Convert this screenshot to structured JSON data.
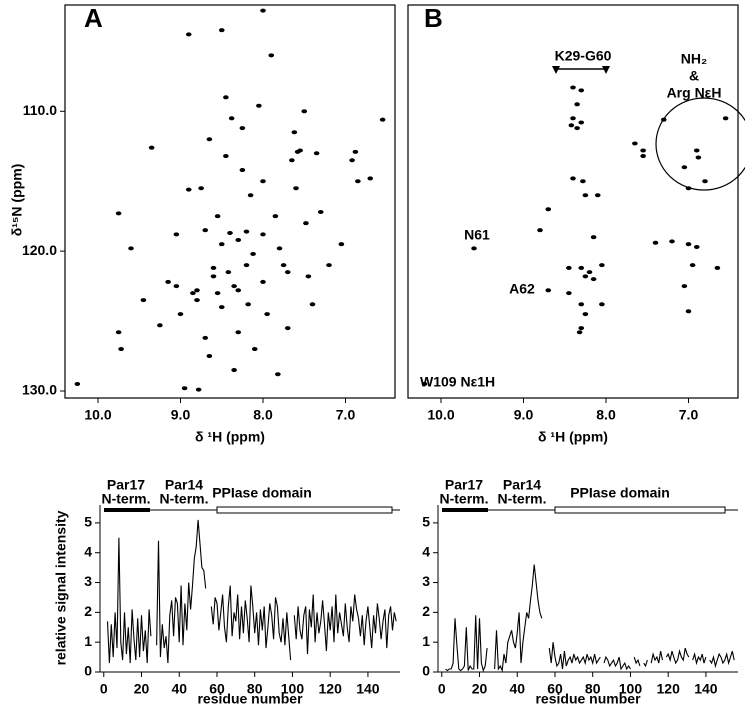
{
  "chart_data": [
    {
      "type": "scatter",
      "panel": "A",
      "color": "#000000",
      "x": [
        10.25,
        9.75,
        9.72,
        9.75,
        9.6,
        9.45,
        9.35,
        9.25,
        9.15,
        9.05,
        9.0,
        8.95,
        8.9,
        8.8,
        8.8,
        8.78,
        8.7,
        8.7,
        8.75,
        8.65,
        8.6,
        8.6,
        8.55,
        8.55,
        8.5,
        8.5,
        8.45,
        8.45,
        8.42,
        8.4,
        8.38,
        8.35,
        8.3,
        8.3,
        8.3,
        8.25,
        8.25,
        8.2,
        8.2,
        8.18,
        8.15,
        8.12,
        8.1,
        8.05,
        8.0,
        8.0,
        8.0,
        7.95,
        7.9,
        7.85,
        7.82,
        7.8,
        7.75,
        7.7,
        7.65,
        7.6,
        7.55,
        7.5,
        7.48,
        7.45,
        7.4,
        7.35,
        7.3,
        7.2,
        7.05,
        6.92,
        6.88,
        6.85,
        6.7,
        6.55,
        7.58,
        7.62,
        8.85,
        9.05,
        8.9,
        8.65,
        8.35,
        8.0,
        7.7,
        8.5
      ],
      "values": [
        129.5,
        125.8,
        127.0,
        117.3,
        119.8,
        123.5,
        112.6,
        125.3,
        122.2,
        122.5,
        124.5,
        129.8,
        104.5,
        122.8,
        123.5,
        129.9,
        126.2,
        118.5,
        115.5,
        112.0,
        121.2,
        121.8,
        117.5,
        123.0,
        124.0,
        104.2,
        109.0,
        113.2,
        121.5,
        118.7,
        110.5,
        122.5,
        119.2,
        122.8,
        125.8,
        111.2,
        114.2,
        118.6,
        121.0,
        123.8,
        116.0,
        120.2,
        127.0,
        109.6,
        102.8,
        115.0,
        122.2,
        124.5,
        106.0,
        117.5,
        128.8,
        119.8,
        121.0,
        125.5,
        113.5,
        115.5,
        112.8,
        110.0,
        118.0,
        121.8,
        123.8,
        113.0,
        117.2,
        121.0,
        119.5,
        113.5,
        112.9,
        115.0,
        114.8,
        110.6,
        112.9,
        111.5,
        123.0,
        118.8,
        115.6,
        127.5,
        128.5,
        118.8,
        121.5,
        119.5
      ],
      "xlim": [
        10.4,
        6.4
      ],
      "ylim": [
        130.5,
        102.4
      ],
      "xticks": [
        {
          "value": 10,
          "label": "10.0"
        },
        {
          "value": 9,
          "label": "9.0"
        },
        {
          "value": 8,
          "label": "8.0"
        },
        {
          "value": 7,
          "label": "7.0"
        }
      ],
      "yticks": [
        {
          "value": 110,
          "label": "110.0"
        },
        {
          "value": 120,
          "label": "120.0"
        },
        {
          "value": 130,
          "label": "130.0"
        }
      ],
      "xlabel": "δ ¹H (ppm)",
      "ylabel": "δ¹⁵N (ppm)"
    },
    {
      "type": "scatter",
      "panel": "B",
      "color": "#000000",
      "x": [
        8.4,
        8.3,
        8.35,
        8.4,
        8.42,
        8.35,
        8.3,
        8.4,
        8.28,
        8.25,
        8.1,
        8.45,
        8.3,
        8.25,
        8.2,
        8.15,
        8.05,
        8.45,
        8.3,
        8.25,
        8.05,
        8.3,
        8.32,
        8.15,
        8.8,
        8.7,
        9.6,
        8.7,
        10.2,
        7.65,
        7.55,
        7.55,
        6.9,
        6.88,
        7.3,
        6.55,
        7.0,
        6.8,
        7.4,
        7.2,
        7.0,
        6.9,
        6.95,
        7.05,
        6.65,
        7.0,
        7.05
      ],
      "values": [
        108.3,
        108.5,
        109.5,
        110.5,
        111.0,
        111.2,
        110.8,
        114.8,
        115.0,
        116.0,
        116.0,
        121.2,
        121.2,
        121.8,
        121.5,
        122.0,
        121.0,
        123.0,
        123.8,
        124.5,
        123.8,
        125.5,
        125.8,
        119.0,
        118.5,
        117.0,
        119.8,
        122.8,
        129.5,
        112.3,
        112.8,
        113.2,
        112.8,
        113.3,
        110.6,
        110.5,
        115.5,
        115.0,
        119.4,
        119.3,
        119.5,
        119.7,
        121.0,
        122.5,
        121.2,
        124.3,
        114.0
      ],
      "xlim": [
        10.4,
        6.4
      ],
      "ylim": [
        130.5,
        102.4
      ],
      "xticks": [
        {
          "value": 10,
          "label": "10.0"
        },
        {
          "value": 9,
          "label": "9.0"
        },
        {
          "value": 8,
          "label": "8.0"
        },
        {
          "value": 7,
          "label": "7.0"
        }
      ],
      "xlabel": "δ ¹H (ppm)",
      "annotations": [
        "K29-G60",
        "NH₂",
        "&",
        "Arg NεH",
        "N61",
        "A62",
        "W109 Nε1H"
      ]
    },
    {
      "type": "line",
      "color": "#000000",
      "x": [
        1,
        2,
        3,
        4,
        5,
        6,
        7,
        8,
        9,
        10,
        11,
        12,
        13,
        14,
        15,
        16,
        17,
        18,
        19,
        20,
        21,
        22,
        23,
        24,
        25,
        26,
        27,
        28,
        29,
        30,
        31,
        32,
        33,
        34,
        35,
        36,
        37,
        38,
        39,
        40,
        41,
        42,
        43,
        44,
        45,
        46,
        47,
        48,
        49,
        50,
        51,
        52,
        53,
        54,
        55,
        56,
        57,
        58,
        59,
        60,
        61,
        62,
        63,
        64,
        65,
        66,
        67,
        68,
        69,
        70,
        71,
        72,
        73,
        74,
        75,
        76,
        77,
        78,
        79,
        80,
        81,
        82,
        83,
        84,
        85,
        86,
        87,
        88,
        89,
        90,
        91,
        92,
        93,
        94,
        95,
        96,
        97,
        98,
        99,
        100,
        101,
        102,
        103,
        104,
        105,
        106,
        107,
        108,
        109,
        110,
        111,
        112,
        113,
        114,
        115,
        116,
        117,
        118,
        119,
        120,
        121,
        122,
        123,
        124,
        125,
        126,
        127,
        128,
        129,
        130,
        131,
        132,
        133,
        134,
        135,
        136,
        137,
        138,
        139,
        140,
        141,
        142,
        143,
        144,
        145,
        146,
        147,
        148,
        149,
        150,
        151,
        152,
        153,
        154,
        155
      ],
      "values": [
        null,
        1.7,
        0.3,
        1.6,
        0.5,
        2.0,
        0.8,
        4.5,
        1.0,
        0.4,
        2.0,
        0.6,
        1.5,
        0.3,
        2.1,
        1.1,
        0.4,
        1.8,
        0.5,
        1.9,
        0.7,
        1.4,
        0.3,
        2.1,
        1.2,
        null,
        null,
        0.9,
        4.4,
        0.5,
        1.6,
        0.8,
        1.2,
        0.3,
        1.9,
        2.4,
        1.2,
        2.5,
        2.3,
        1.0,
        2.9,
        0.9,
        2.3,
        1.4,
        3.0,
        2.1,
        2.9,
        3.8,
        4.2,
        5.1,
        4.3,
        3.5,
        3.4,
        2.8,
        null,
        null,
        2.2,
        1.6,
        2.5,
        2.3,
        1.4,
        2.0,
        2.6,
        1.5,
        1.0,
        2.2,
        2.9,
        1.2,
        2.0,
        1.7,
        2.6,
        1.1,
        2.2,
        1.3,
        2.4,
        1.8,
        1.0,
        2.9,
        2.2,
        1.3,
        2.0,
        0.9,
        2.1,
        1.4,
        2.2,
        0.8,
        1.5,
        2.3,
        1.9,
        1.1,
        2.5,
        2.2,
        1.3,
        1.0,
        1.8,
        0.9,
        2.0,
        1.2,
        0.4,
        null,
        1.9,
        1.1,
        2.2,
        1.4,
        1.1,
        1.9,
        2.2,
        0.6,
        2.1,
        1.5,
        2.6,
        1.0,
        2.0,
        1.3,
        1.7,
        2.4,
        1.6,
        0.7,
        2.0,
        1.4,
        2.2,
        1.0,
        2.6,
        1.3,
        2.0,
        1.6,
        1.2,
        2.3,
        1.5,
        1.0,
        2.2,
        1.7,
        2.6,
        2.1,
        1.8,
        1.2,
        1.9,
        0.9,
        1.7,
        2.2,
        1.5,
        0.8,
        1.9,
        1.3,
        2.3,
        1.8,
        1.1,
        1.7,
        2.1,
        0.8,
        1.9,
        2.2,
        1.4,
        2.0,
        1.7
      ],
      "xlim": [
        -2,
        157
      ],
      "ylim": [
        0,
        5.6
      ],
      "xticks": [
        0,
        20,
        40,
        60,
        80,
        100,
        120,
        140
      ],
      "yticks": [
        0,
        1,
        2,
        3,
        4,
        5
      ],
      "xlabel": "residue number",
      "ylabel": "relative signal intensity",
      "domains": [
        "Par17",
        "N-term.",
        "Par14",
        "N-term.",
        "PPIase domain"
      ]
    },
    {
      "type": "line",
      "color": "#000000",
      "x": [
        1,
        2,
        3,
        4,
        5,
        6,
        7,
        8,
        9,
        10,
        11,
        12,
        13,
        14,
        15,
        16,
        17,
        18,
        19,
        20,
        21,
        22,
        23,
        24,
        25,
        26,
        27,
        28,
        29,
        30,
        31,
        32,
        33,
        34,
        35,
        36,
        37,
        38,
        39,
        40,
        41,
        42,
        43,
        44,
        45,
        46,
        47,
        48,
        49,
        50,
        51,
        52,
        53,
        54,
        55,
        56,
        57,
        58,
        59,
        60,
        61,
        62,
        63,
        64,
        65,
        66,
        67,
        68,
        69,
        70,
        71,
        72,
        73,
        74,
        75,
        76,
        77,
        78,
        79,
        80,
        81,
        82,
        83,
        84,
        85,
        86,
        87,
        88,
        89,
        90,
        91,
        92,
        93,
        94,
        95,
        96,
        97,
        98,
        99,
        100,
        101,
        102,
        103,
        104,
        105,
        106,
        107,
        108,
        109,
        110,
        111,
        112,
        113,
        114,
        115,
        116,
        117,
        118,
        119,
        120,
        121,
        122,
        123,
        124,
        125,
        126,
        127,
        128,
        129,
        130,
        131,
        132,
        133,
        134,
        135,
        136,
        137,
        138,
        139,
        140,
        141,
        142,
        143,
        144,
        145,
        146,
        147,
        148,
        149,
        150,
        151,
        152,
        153,
        154,
        155
      ],
      "values": [
        null,
        0.1,
        0.05,
        0.1,
        0.1,
        0.3,
        1.8,
        0.9,
        0.1,
        0.05,
        0.1,
        0.2,
        1.5,
        0.05,
        0.2,
        0.1,
        0.1,
        1.9,
        0.1,
        1.8,
        0.3,
        0.05,
        0.2,
        0.8,
        null,
        null,
        null,
        0.1,
        1.4,
        0.1,
        0.2,
        0.05,
        0.6,
        0.3,
        1.0,
        1.2,
        1.4,
        1.0,
        0.8,
        1.3,
        2.0,
        0.3,
        1.0,
        1.5,
        2.0,
        1.8,
        2.4,
        2.9,
        3.6,
        3.0,
        2.4,
        2.0,
        1.8,
        null,
        null,
        null,
        0.8,
        0.3,
        1.0,
        0.5,
        0.2,
        0.3,
        0.6,
        0.1,
        0.7,
        0.2,
        0.4,
        0.5,
        0.3,
        0.6,
        0.4,
        0.5,
        0.3,
        0.4,
        0.5,
        0.3,
        0.6,
        0.4,
        0.5,
        0.3,
        0.6,
        0.3,
        0.4,
        0.5,
        null,
        0.3,
        0.5,
        0.4,
        0.2,
        0.3,
        0.4,
        0.2,
        0.3,
        0.5,
        0.1,
        0.2,
        0.3,
        0.1,
        0.2,
        0.1,
        null,
        0.5,
        0.3,
        0.4,
        0.2,
        null,
        0.3,
        0.2,
        0.4,
        null,
        0.3,
        0.6,
        0.4,
        0.5,
        0.3,
        0.7,
        0.4,
        null,
        0.5,
        0.6,
        0.4,
        0.7,
        0.5,
        0.3,
        0.4,
        0.7,
        0.5,
        0.4,
        0.8,
        0.6,
        0.5,
        null,
        0.4,
        0.6,
        0.3,
        0.5,
        0.4,
        0.6,
        0.3,
        0.5,
        null,
        0.4,
        0.3,
        0.5,
        0.2,
        0.4,
        0.6,
        0.5,
        0.3,
        0.4,
        0.6,
        0.3,
        0.5,
        0.7,
        0.4
      ],
      "xlim": [
        -2,
        157
      ],
      "ylim": [
        0,
        5.6
      ],
      "xticks": [
        0,
        20,
        40,
        60,
        80,
        100,
        120,
        140
      ],
      "yticks": [
        0,
        1,
        2,
        3,
        4,
        5
      ],
      "xlabel": "residue number",
      "domains": [
        "Par17",
        "N-term.",
        "Par14",
        "N-term.",
        "PPIase domain"
      ]
    }
  ]
}
